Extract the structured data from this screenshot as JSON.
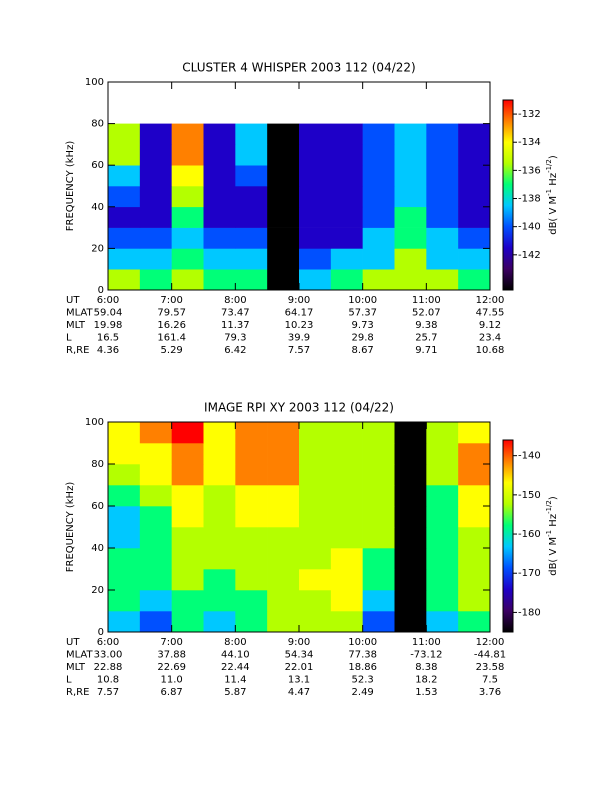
{
  "chart_data": [
    {
      "type": "heatmap",
      "title": "CLUSTER 4 WHISPER 2003 112 (04/22)",
      "ylabel": "FREQUENCY (kHz)",
      "xlim": [
        6,
        12
      ],
      "xticks": [
        {
          "value": 6,
          "label": "6:00"
        },
        {
          "value": 7,
          "label": "7:00"
        },
        {
          "value": 8,
          "label": "8:00"
        },
        {
          "value": 9,
          "label": "9:00"
        },
        {
          "value": 10,
          "label": "10:00"
        },
        {
          "value": 11,
          "label": "11:00"
        },
        {
          "value": 12,
          "label": "12:00"
        }
      ],
      "ylim": [
        0,
        100
      ],
      "yticks": [
        0,
        20,
        40,
        60,
        80,
        100
      ],
      "x_bins": [
        6,
        6.5,
        7,
        7.5,
        8,
        8.5,
        9,
        9.5,
        10,
        10.5,
        11,
        11.5,
        12
      ],
      "y_bins": [
        0,
        10,
        20,
        30,
        40,
        50,
        60,
        70,
        80
      ],
      "z": [
        [
          -136,
          -137,
          -136,
          -137,
          -137,
          null,
          -138,
          -137,
          -136,
          -135,
          -136,
          -137
        ],
        [
          -138,
          -139,
          -137,
          -139,
          -139,
          null,
          -140,
          -139,
          -138,
          -136,
          -138,
          -139
        ],
        [
          -140,
          -140,
          -138,
          -140,
          -140,
          null,
          -141,
          -141,
          -139,
          -137,
          -139,
          -140
        ],
        [
          -141,
          -141,
          -137,
          -141,
          -141,
          null,
          -142,
          -142,
          -140,
          -137,
          -140,
          -141
        ],
        [
          -140,
          -141,
          -136,
          -141,
          -141,
          null,
          -142,
          -142,
          -140,
          -138,
          -140,
          -141
        ],
        [
          -138,
          -141,
          -134,
          -141,
          -140,
          null,
          -142,
          -142,
          -140,
          -139,
          -140,
          -141
        ],
        [
          -136,
          -141,
          -133,
          -141,
          -139,
          null,
          -142,
          -142,
          -140,
          -139,
          -140,
          -141
        ],
        [
          -135,
          -141,
          -132,
          -141,
          -139,
          null,
          -142,
          -142,
          -140,
          -139,
          -140,
          -141
        ]
      ],
      "clim": [
        -144.5,
        -131
      ],
      "cticks": [
        -132,
        -134,
        -136,
        -138,
        -140,
        -142
      ],
      "colorbar_label": [
        "dB( V M",
        "-1",
        " Hz",
        "-1/2",
        ")"
      ],
      "colormap": [
        "#000000",
        "#3c0064",
        "#1e00c8",
        "#0050ff",
        "#00c8ff",
        "#00ff78",
        "#b4ff00",
        "#ffff00",
        "#ff8000",
        "#ff0000"
      ],
      "ut_label": "UT",
      "ephemeris": [
        {
          "label": "MLAT",
          "values": [
            "59.04",
            "79.57",
            "73.47",
            "64.17",
            "57.37",
            "52.07",
            "47.55"
          ]
        },
        {
          "label": "MLT",
          "values": [
            "19.98",
            "16.26",
            "11.37",
            "10.23",
            "9.73",
            "9.38",
            "9.12"
          ]
        },
        {
          "label": "L",
          "values": [
            "16.5",
            "161.4",
            "79.3",
            "39.9",
            "29.8",
            "25.7",
            "23.4"
          ]
        },
        {
          "label": "R,RE",
          "values": [
            "4.36",
            "5.29",
            "6.42",
            "7.57",
            "8.67",
            "9.71",
            "10.68"
          ]
        }
      ]
    },
    {
      "type": "heatmap",
      "title": "IMAGE RPI XY 2003 112 (04/22)",
      "ylabel": "FREQUENCY (kHz)",
      "xlim": [
        6,
        12
      ],
      "xticks": [
        {
          "value": 6,
          "label": "6:00"
        },
        {
          "value": 7,
          "label": "7:00"
        },
        {
          "value": 8,
          "label": "8:00"
        },
        {
          "value": 9,
          "label": "9:00"
        },
        {
          "value": 10,
          "label": "10:00"
        },
        {
          "value": 11,
          "label": "11:00"
        },
        {
          "value": 12,
          "label": "12:00"
        }
      ],
      "ylim": [
        0,
        100
      ],
      "yticks": [
        0,
        20,
        40,
        60,
        80,
        100
      ],
      "x_bins": [
        6,
        6.5,
        7,
        7.5,
        8,
        8.5,
        9,
        9.5,
        10,
        10.5,
        11,
        11.5,
        12
      ],
      "y_bins": [
        0,
        10,
        20,
        30,
        40,
        50,
        60,
        70,
        80,
        90,
        100
      ],
      "z": [
        [
          -165,
          -168,
          -160,
          -165,
          -160,
          -150,
          -155,
          -150,
          -170,
          null,
          -165,
          -160
        ],
        [
          -160,
          -165,
          -158,
          -160,
          -158,
          -150,
          -150,
          -148,
          -165,
          null,
          -160,
          -155
        ],
        [
          -158,
          -160,
          -155,
          -158,
          -155,
          -150,
          -148,
          -148,
          -160,
          null,
          -158,
          -155
        ],
        [
          -160,
          -158,
          -152,
          -155,
          -150,
          -152,
          -150,
          -148,
          -158,
          null,
          -158,
          -152
        ],
        [
          -165,
          -160,
          -150,
          -155,
          -150,
          -150,
          -152,
          -150,
          -155,
          null,
          -160,
          -150
        ],
        [
          -165,
          -158,
          -148,
          -152,
          -148,
          -148,
          -155,
          -150,
          -152,
          null,
          -160,
          -148
        ],
        [
          -160,
          -155,
          -145,
          -150,
          -145,
          -145,
          -155,
          -152,
          -150,
          null,
          -160,
          -145
        ],
        [
          -150,
          -148,
          -142,
          -148,
          -142,
          -142,
          -152,
          -150,
          -150,
          null,
          -155,
          -142
        ],
        [
          -145,
          -145,
          -140,
          -145,
          -140,
          -140,
          -150,
          -150,
          -150,
          null,
          -152,
          -142
        ],
        [
          -145,
          -142,
          -138,
          -145,
          -140,
          -140,
          -150,
          -150,
          -150,
          null,
          -150,
          -145
        ]
      ],
      "clim": [
        -185,
        -136
      ],
      "cticks": [
        -140,
        -150,
        -160,
        -170,
        -180
      ],
      "colorbar_label": [
        "dB( V M",
        "-1",
        " Hz",
        "-1/2",
        ")"
      ],
      "colormap": [
        "#000000",
        "#3c0064",
        "#1e00c8",
        "#0050ff",
        "#00c8ff",
        "#00ff78",
        "#b4ff00",
        "#ffff00",
        "#ff8000",
        "#ff0000"
      ],
      "ut_label": "UT",
      "ephemeris": [
        {
          "label": "MLAT",
          "values": [
            "33.00",
            "37.88",
            "44.10",
            "54.34",
            "77.38",
            "-73.12",
            "-44.81"
          ]
        },
        {
          "label": "MLT",
          "values": [
            "22.88",
            "22.69",
            "22.44",
            "22.01",
            "18.86",
            "8.38",
            "23.58"
          ]
        },
        {
          "label": "L",
          "values": [
            "10.8",
            "11.0",
            "11.4",
            "13.1",
            "52.3",
            "18.2",
            "7.5"
          ]
        },
        {
          "label": "R,RE",
          "values": [
            "7.57",
            "6.87",
            "5.87",
            "4.47",
            "2.49",
            "1.53",
            "3.76"
          ]
        }
      ]
    }
  ]
}
